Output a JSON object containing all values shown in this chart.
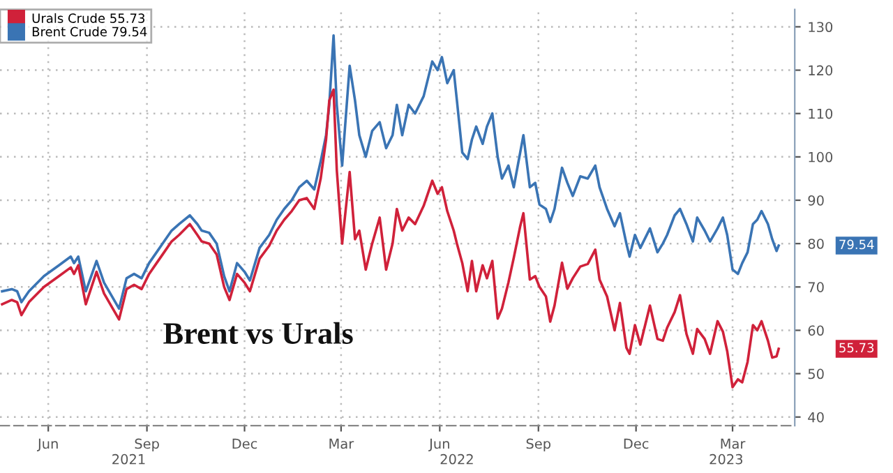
{
  "chart_data": {
    "type": "line",
    "title": "Brent vs Urals",
    "x": [
      "2021-05-03",
      "2021-05-12",
      "2021-05-17",
      "2021-05-21",
      "2021-05-28",
      "2021-06-11",
      "2021-06-25",
      "2021-07-06",
      "2021-07-09",
      "2021-07-13",
      "2021-07-20",
      "2021-07-30",
      "2021-08-06",
      "2021-08-20",
      "2021-08-27",
      "2021-09-03",
      "2021-09-10",
      "2021-09-17",
      "2021-09-24",
      "2021-10-01",
      "2021-10-08",
      "2021-10-15",
      "2021-10-25",
      "2021-11-01",
      "2021-11-05",
      "2021-11-12",
      "2021-11-19",
      "2021-11-26",
      "2021-12-01",
      "2021-12-08",
      "2021-12-15",
      "2021-12-20",
      "2021-12-29",
      "2022-01-07",
      "2022-01-14",
      "2022-01-21",
      "2022-01-28",
      "2022-02-04",
      "2022-02-11",
      "2022-02-18",
      "2022-02-24",
      "2022-03-01",
      "2022-03-04",
      "2022-03-08",
      "2022-03-11",
      "2022-03-16",
      "2022-03-23",
      "2022-03-28",
      "2022-04-01",
      "2022-04-07",
      "2022-04-13",
      "2022-04-20",
      "2022-04-26",
      "2022-05-02",
      "2022-05-06",
      "2022-05-11",
      "2022-05-17",
      "2022-05-23",
      "2022-05-31",
      "2022-06-08",
      "2022-06-13",
      "2022-06-17",
      "2022-06-22",
      "2022-06-28",
      "2022-07-01",
      "2022-07-06",
      "2022-07-11",
      "2022-07-15",
      "2022-07-19",
      "2022-07-25",
      "2022-07-29",
      "2022-08-03",
      "2022-08-08",
      "2022-08-12",
      "2022-08-18",
      "2022-08-23",
      "2022-08-29",
      "2022-09-01",
      "2022-09-07",
      "2022-09-12",
      "2022-09-16",
      "2022-09-22",
      "2022-09-26",
      "2022-09-30",
      "2022-10-07",
      "2022-10-12",
      "2022-10-17",
      "2022-10-24",
      "2022-10-31",
      "2022-11-07",
      "2022-11-11",
      "2022-11-18",
      "2022-11-25",
      "2022-11-30",
      "2022-12-06",
      "2022-12-09",
      "2022-12-14",
      "2022-12-19",
      "2022-12-28",
      "2023-01-04",
      "2023-01-09",
      "2023-01-13",
      "2023-01-20",
      "2023-01-25",
      "2023-01-31",
      "2023-02-06",
      "2023-02-10",
      "2023-02-17",
      "2023-02-22",
      "2023-03-01",
      "2023-03-06",
      "2023-03-10",
      "2023-03-15",
      "2023-03-20",
      "2023-03-24",
      "2023-03-29",
      "2023-04-03",
      "2023-04-07",
      "2023-04-11",
      "2023-04-17",
      "2023-04-21",
      "2023-04-25",
      "2023-04-27"
    ],
    "series": [
      {
        "name": "Urals Crude 55.73",
        "color": "#d0213a",
        "values": [
          66,
          67,
          66.5,
          63.5,
          66.5,
          70,
          72.5,
          74.5,
          73,
          75,
          66,
          73.5,
          68.5,
          62.5,
          69.5,
          70.5,
          69.5,
          73,
          75.5,
          78,
          80.5,
          82,
          84.5,
          82,
          80.5,
          80,
          77.5,
          70,
          67,
          73,
          71,
          69,
          76.5,
          79.5,
          83,
          85.5,
          87.5,
          90,
          90.5,
          88,
          95,
          104,
          113,
          115.5,
          97,
          80,
          96.5,
          81,
          83,
          74,
          80,
          86,
          74,
          80,
          88,
          83,
          86,
          84.5,
          88.7,
          94.5,
          91.5,
          93,
          87.5,
          83,
          80,
          75.5,
          69,
          76,
          69,
          75,
          72,
          76,
          62.7,
          65,
          71,
          76.7,
          84,
          87,
          71.7,
          72.5,
          70,
          67.8,
          62,
          65.7,
          75.6,
          69.6,
          72,
          74.7,
          75.3,
          78.6,
          71.7,
          67.8,
          60,
          66.3,
          56,
          54.6,
          61.2,
          56.7,
          65.7,
          58,
          57.6,
          60.6,
          64.2,
          68.1,
          59.2,
          54.6,
          60.3,
          58,
          54.6,
          62.1,
          59.7,
          55.2,
          46.9,
          48.7,
          48,
          52.7,
          61.2,
          60,
          62.1,
          57.6,
          53.7,
          54,
          55.73
        ]
      },
      {
        "name": "Brent Crude 79.54",
        "color": "#3a74b4",
        "values": [
          69,
          69.5,
          69,
          66.5,
          69,
          72.5,
          75,
          77,
          75.5,
          77,
          69,
          76,
          71,
          65,
          72,
          73,
          72,
          75.5,
          78,
          80.5,
          83,
          84.5,
          86.5,
          84.5,
          83,
          82.5,
          80,
          72.5,
          69,
          75.5,
          73.5,
          71.5,
          79,
          82,
          85.5,
          88,
          90,
          93,
          94.5,
          92.5,
          99,
          105,
          112,
          128,
          112,
          98,
          121,
          113,
          105,
          100,
          106,
          108,
          102,
          105,
          112,
          105,
          112,
          110,
          114,
          122,
          120,
          123,
          117,
          120,
          113,
          101,
          99.5,
          104,
          107,
          103,
          107,
          110,
          100,
          95,
          98,
          93,
          101,
          105,
          93,
          94,
          89,
          88,
          85,
          88,
          97.5,
          94,
          91,
          95.5,
          95,
          98,
          93,
          88,
          84,
          87,
          80,
          77,
          82,
          79,
          83.5,
          78,
          80,
          82,
          86.5,
          88,
          84.5,
          80.5,
          86,
          83,
          80.5,
          83.5,
          86,
          82,
          74,
          73,
          75.5,
          78,
          84.5,
          85.5,
          87.5,
          84.5,
          81,
          78.3,
          79.54
        ]
      }
    ],
    "annotations": [
      "55.73",
      "79.54"
    ],
    "xlim": [
      "2021-05-01",
      "2023-05-12"
    ],
    "xticks": [
      {
        "value": "2021-06-15",
        "label": "Jun"
      },
      {
        "value": "2021-09-15",
        "label": "Sep"
      },
      {
        "value": "2021-12-15",
        "label": "Dec"
      },
      {
        "value": "2022-03-15",
        "label": "Mar"
      },
      {
        "value": "2022-06-15",
        "label": "Jun"
      },
      {
        "value": "2022-09-15",
        "label": "Sep"
      },
      {
        "value": "2022-12-15",
        "label": "Dec"
      },
      {
        "value": "2023-03-15",
        "label": "Mar"
      }
    ],
    "x2lim": [
      "2021-05-01",
      "2023-05-12"
    ],
    "x2ticks": [
      {
        "value": "2021-08-29",
        "label": "2021"
      },
      {
        "value": "2022-07-01",
        "label": "2022"
      },
      {
        "value": "2023-03-09",
        "label": "2023"
      }
    ],
    "ylim": [
      38,
      134
    ],
    "yticks": [
      40,
      50,
      60,
      70,
      80,
      90,
      100,
      110,
      120,
      130
    ],
    "grid": true,
    "legend": "top left",
    "line_style": "solid",
    "marker": "none"
  }
}
